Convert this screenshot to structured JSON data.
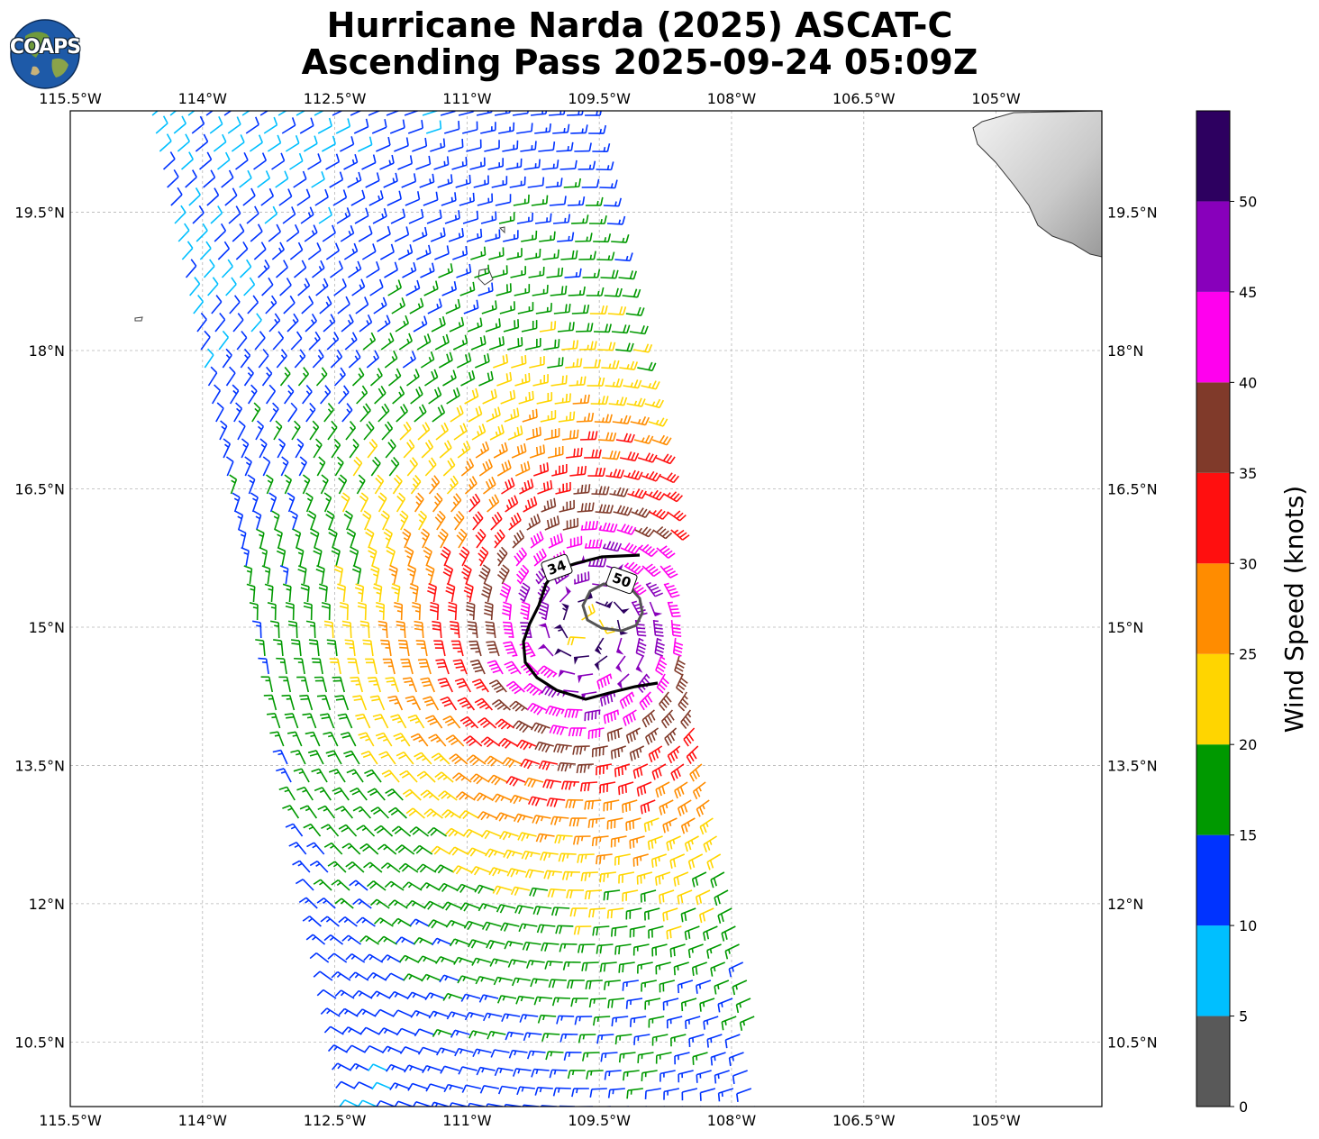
{
  "title": {
    "line1": "Hurricane Narda (2025) ASCAT-C",
    "line2": "Ascending Pass 2025-09-24 05:09Z"
  },
  "logo": {
    "text": "COAPS"
  },
  "map": {
    "lon_range": [
      -115.5,
      -103.8
    ],
    "lat_range": [
      9.8,
      20.6
    ],
    "lon_ticks": [
      {
        "value": -115.5,
        "label": "115.5°W"
      },
      {
        "value": -114,
        "label": "114°W"
      },
      {
        "value": -112.5,
        "label": "112.5°W"
      },
      {
        "value": -111,
        "label": "111°W"
      },
      {
        "value": -109.5,
        "label": "109.5°W"
      },
      {
        "value": -108,
        "label": "108°W"
      },
      {
        "value": -106.5,
        "label": "106.5°W"
      },
      {
        "value": -105,
        "label": "105°W"
      }
    ],
    "lat_ticks": [
      {
        "value": 19.5,
        "label": "19.5°N"
      },
      {
        "value": 18,
        "label": "18°N"
      },
      {
        "value": 16.5,
        "label": "16.5°N"
      },
      {
        "value": 15,
        "label": "15°N"
      },
      {
        "value": 13.5,
        "label": "13.5°N"
      },
      {
        "value": 12,
        "label": "12°N"
      },
      {
        "value": 10.5,
        "label": "10.5°N"
      }
    ],
    "gridlines": true,
    "storm_center": {
      "lon": -109.65,
      "lat": 15.0
    },
    "contours": [
      {
        "label": "34",
        "knots": 34
      },
      {
        "label": "50",
        "knots": 50
      }
    ]
  },
  "colorbar": {
    "title": "Wind Speed (knots)",
    "bins": [
      {
        "min": 0,
        "max": 5,
        "color": "#595959"
      },
      {
        "min": 5,
        "max": 10,
        "color": "#00bfff"
      },
      {
        "min": 10,
        "max": 15,
        "color": "#0033ff"
      },
      {
        "min": 15,
        "max": 20,
        "color": "#009900"
      },
      {
        "min": 20,
        "max": 25,
        "color": "#ffd500"
      },
      {
        "min": 25,
        "max": 30,
        "color": "#ff8c00"
      },
      {
        "min": 30,
        "max": 35,
        "color": "#ff0f0f"
      },
      {
        "min": 35,
        "max": 40,
        "color": "#803a2a"
      },
      {
        "min": 40,
        "max": 45,
        "color": "#ff00ee"
      },
      {
        "min": 45,
        "max": 50,
        "color": "#8800bb"
      },
      {
        "min": 50,
        "max": 55,
        "color": "#2d0060"
      }
    ],
    "ticks": [
      "0",
      "5",
      "10",
      "15",
      "20",
      "25",
      "30",
      "35",
      "40",
      "45",
      "50"
    ]
  }
}
